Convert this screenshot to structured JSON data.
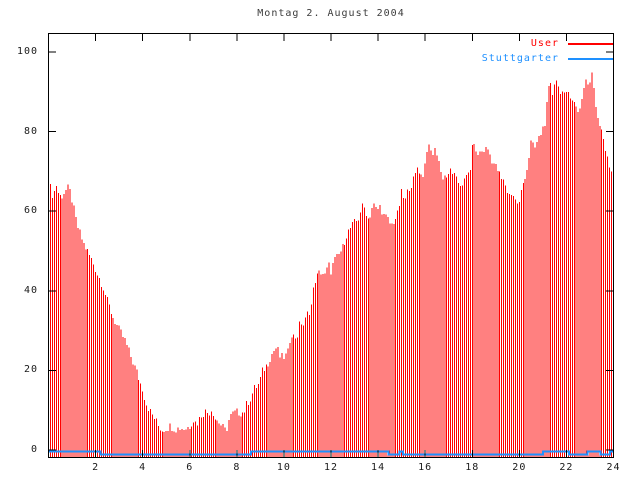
{
  "chart_data": {
    "type": "bar",
    "title": "Montag 2. August 2004",
    "xlabel": "",
    "ylabel": "",
    "xlim": [
      0,
      24
    ],
    "ylim": [
      0,
      100
    ],
    "x_ticks": [
      2,
      4,
      6,
      8,
      10,
      12,
      14,
      16,
      18,
      20,
      22,
      24
    ],
    "y_ticks": [
      0,
      20,
      40,
      60,
      80,
      100
    ],
    "grid": "off",
    "legend_position": "top-right-inside",
    "frame_color": "#000000",
    "title_color": "#3c3c3c",
    "tick_label_color": "#1a1a1a",
    "series": [
      {
        "name": "User",
        "style": "impulses",
        "color": "#ff0000",
        "sample_interval_hours": 0.0833,
        "envelope_points": [
          [
            0.0,
            70.5
          ],
          [
            0.08,
            66.5
          ],
          [
            0.15,
            64.8
          ],
          [
            0.25,
            65.5
          ],
          [
            0.34,
            67.3
          ],
          [
            0.45,
            64.3
          ],
          [
            0.6,
            64.5
          ],
          [
            0.68,
            65.5
          ],
          [
            0.85,
            66.3
          ],
          [
            0.95,
            65.0
          ],
          [
            1.05,
            62.0
          ],
          [
            1.2,
            57.5
          ],
          [
            1.35,
            55.0
          ],
          [
            1.5,
            52.5
          ],
          [
            1.7,
            50.4
          ],
          [
            1.9,
            48.0
          ],
          [
            2.1,
            45.0
          ],
          [
            2.3,
            42.5
          ],
          [
            2.5,
            38.5
          ],
          [
            2.75,
            34.5
          ],
          [
            3.0,
            31.5
          ],
          [
            3.25,
            28.8
          ],
          [
            3.5,
            24.8
          ],
          [
            3.75,
            21.0
          ],
          [
            3.9,
            18.5
          ],
          [
            4.0,
            17.0
          ],
          [
            4.15,
            13.5
          ],
          [
            4.35,
            11.0
          ],
          [
            4.5,
            9.7
          ],
          [
            4.7,
            7.5
          ],
          [
            4.85,
            6.8
          ],
          [
            5.0,
            7.2
          ],
          [
            5.2,
            7.8
          ],
          [
            5.4,
            7.0
          ],
          [
            5.6,
            7.4
          ],
          [
            5.8,
            7.0
          ],
          [
            6.0,
            7.8
          ],
          [
            6.15,
            9.4
          ],
          [
            6.3,
            8.2
          ],
          [
            6.5,
            10.5
          ],
          [
            6.65,
            11.4
          ],
          [
            6.8,
            11.0
          ],
          [
            6.95,
            12.0
          ],
          [
            7.1,
            9.4
          ],
          [
            7.25,
            8.7
          ],
          [
            7.45,
            7.0
          ],
          [
            7.55,
            6.5
          ],
          [
            7.7,
            10.0
          ],
          [
            7.9,
            11.0
          ],
          [
            8.1,
            11.2
          ],
          [
            8.3,
            11.0
          ],
          [
            8.45,
            13.5
          ],
          [
            8.6,
            14.7
          ],
          [
            8.75,
            17.0
          ],
          [
            8.95,
            18.2
          ],
          [
            9.1,
            21.5
          ],
          [
            9.3,
            23.0
          ],
          [
            9.45,
            25.0
          ],
          [
            9.6,
            26.5
          ],
          [
            9.7,
            27.2
          ],
          [
            9.85,
            24.5
          ],
          [
            10.0,
            24.8
          ],
          [
            10.15,
            25.2
          ],
          [
            10.3,
            31.0
          ],
          [
            10.45,
            29.5
          ],
          [
            10.6,
            30.3
          ],
          [
            10.7,
            33.6
          ],
          [
            10.85,
            32.5
          ],
          [
            11.0,
            35.3
          ],
          [
            11.15,
            36.8
          ],
          [
            11.3,
            43.4
          ],
          [
            11.45,
            45.0
          ],
          [
            11.6,
            45.9
          ],
          [
            11.75,
            44.7
          ],
          [
            11.9,
            47.5
          ],
          [
            12.0,
            46.0
          ],
          [
            12.15,
            48.5
          ],
          [
            12.3,
            49.5
          ],
          [
            12.5,
            51.7
          ],
          [
            12.65,
            54.7
          ],
          [
            12.8,
            56.2
          ],
          [
            13.0,
            57.8
          ],
          [
            13.15,
            58.5
          ],
          [
            13.3,
            61.8
          ],
          [
            13.45,
            61.3
          ],
          [
            13.6,
            58.5
          ],
          [
            13.8,
            62.5
          ],
          [
            13.95,
            60.8
          ],
          [
            14.1,
            62.0
          ],
          [
            14.25,
            59.5
          ],
          [
            14.4,
            58.8
          ],
          [
            14.55,
            57.0
          ],
          [
            14.7,
            58.5
          ],
          [
            14.85,
            60.0
          ],
          [
            15.0,
            65.1
          ],
          [
            15.15,
            63.0
          ],
          [
            15.3,
            66.5
          ],
          [
            15.45,
            67.5
          ],
          [
            15.6,
            69.8
          ],
          [
            15.7,
            72.3
          ],
          [
            15.8,
            69.3
          ],
          [
            15.95,
            70.0
          ],
          [
            16.1,
            76.9
          ],
          [
            16.2,
            75.6
          ],
          [
            16.35,
            74.8
          ],
          [
            16.45,
            76.0
          ],
          [
            16.55,
            74.3
          ],
          [
            16.7,
            69.0
          ],
          [
            16.85,
            69.5
          ],
          [
            17.0,
            69.0
          ],
          [
            17.1,
            71.3
          ],
          [
            17.2,
            69.8
          ],
          [
            17.35,
            68.0
          ],
          [
            17.5,
            67.4
          ],
          [
            17.65,
            67.8
          ],
          [
            17.8,
            69.5
          ],
          [
            17.95,
            72.0
          ],
          [
            18.05,
            79.9
          ],
          [
            18.15,
            74.5
          ],
          [
            18.3,
            75.0
          ],
          [
            18.5,
            75.7
          ],
          [
            18.65,
            76.2
          ],
          [
            18.8,
            73.8
          ],
          [
            18.95,
            72.0
          ],
          [
            19.1,
            70.6
          ],
          [
            19.25,
            68.5
          ],
          [
            19.4,
            67.5
          ],
          [
            19.55,
            64.5
          ],
          [
            19.7,
            65.5
          ],
          [
            19.85,
            63.0
          ],
          [
            20.0,
            62.5
          ],
          [
            20.1,
            66.0
          ],
          [
            20.2,
            68.5
          ],
          [
            20.35,
            71.5
          ],
          [
            20.5,
            77.5
          ],
          [
            20.65,
            76.0
          ],
          [
            20.8,
            78.2
          ],
          [
            20.95,
            80.3
          ],
          [
            21.1,
            83.0
          ],
          [
            21.2,
            88.2
          ],
          [
            21.3,
            92.7
          ],
          [
            21.4,
            89.0
          ],
          [
            21.55,
            94.3
          ],
          [
            21.65,
            91.2
          ],
          [
            21.8,
            90.3
          ],
          [
            21.95,
            88.5
          ],
          [
            22.1,
            90.2
          ],
          [
            22.25,
            88.5
          ],
          [
            22.4,
            86.4
          ],
          [
            22.5,
            85.3
          ],
          [
            22.65,
            87.5
          ],
          [
            22.8,
            93.5
          ],
          [
            22.95,
            91.5
          ],
          [
            23.1,
            94.5
          ],
          [
            23.2,
            89.4
          ],
          [
            23.3,
            84.4
          ],
          [
            23.45,
            82.0
          ],
          [
            23.55,
            80.2
          ],
          [
            23.7,
            74.5
          ],
          [
            23.85,
            71.0
          ],
          [
            24.0,
            70.5
          ]
        ]
      },
      {
        "name": "Stuttgarter",
        "style": "steps",
        "color": "#1e90ff",
        "segments": [
          [
            0.0,
            2.2,
            1.5
          ],
          [
            2.2,
            8.6,
            0.75
          ],
          [
            8.6,
            14.45,
            1.5
          ],
          [
            14.45,
            14.9,
            0.75
          ],
          [
            14.9,
            15.05,
            1.5
          ],
          [
            15.05,
            21.0,
            0.75
          ],
          [
            21.0,
            22.1,
            1.5
          ],
          [
            22.1,
            22.9,
            0.75
          ],
          [
            22.9,
            23.45,
            1.5
          ],
          [
            23.45,
            23.85,
            0.75
          ],
          [
            23.85,
            24.0,
            1.5
          ]
        ]
      }
    ]
  }
}
